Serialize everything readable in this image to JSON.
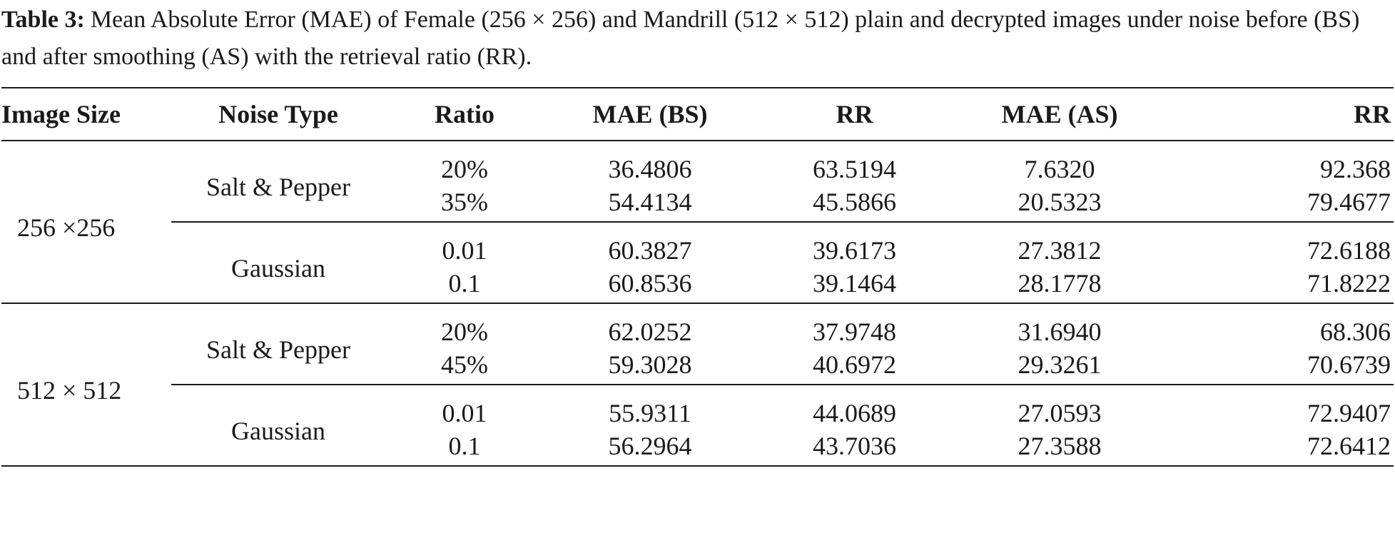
{
  "caption": {
    "label": "Table 3:",
    "text": "Mean Absolute Error (MAE) of Female (256 × 256) and Mandrill (512 × 512) plain and decrypted images under noise before (BS) and after smoothing (AS) with the retrieval ratio (RR)."
  },
  "table": {
    "headers": [
      "Image Size",
      "Noise Type",
      "Ratio",
      "MAE (BS)",
      "RR",
      "MAE (AS)",
      "RR"
    ],
    "groups": [
      {
        "size": "256 ×256",
        "noise": [
          {
            "type": "Salt & Pepper",
            "rows": [
              {
                "ratio": "20%",
                "mae_bs": "36.4806",
                "rr_bs": "63.5194",
                "mae_as": "7.6320",
                "rr_as": "92.368"
              },
              {
                "ratio": "35%",
                "mae_bs": "54.4134",
                "rr_bs": "45.5866",
                "mae_as": "20.5323",
                "rr_as": "79.4677"
              }
            ]
          },
          {
            "type": "Gaussian",
            "rows": [
              {
                "ratio": "0.01",
                "mae_bs": "60.3827",
                "rr_bs": "39.6173",
                "mae_as": "27.3812",
                "rr_as": "72.6188"
              },
              {
                "ratio": "0.1",
                "mae_bs": "60.8536",
                "rr_bs": "39.1464",
                "mae_as": "28.1778",
                "rr_as": "71.8222"
              }
            ]
          }
        ]
      },
      {
        "size": "512 × 512",
        "noise": [
          {
            "type": "Salt & Pepper",
            "rows": [
              {
                "ratio": "20%",
                "mae_bs": "62.0252",
                "rr_bs": "37.9748",
                "mae_as": "31.6940",
                "rr_as": "68.306"
              },
              {
                "ratio": "45%",
                "mae_bs": "59.3028",
                "rr_bs": "40.6972",
                "mae_as": "29.3261",
                "rr_as": "70.6739"
              }
            ]
          },
          {
            "type": "Gaussian",
            "rows": [
              {
                "ratio": "0.01",
                "mae_bs": "55.9311",
                "rr_bs": "44.0689",
                "mae_as": "27.0593",
                "rr_as": "72.9407"
              },
              {
                "ratio": "0.1",
                "mae_bs": "56.2964",
                "rr_bs": "43.7036",
                "mae_as": "27.3588",
                "rr_as": "72.6412"
              }
            ]
          }
        ]
      }
    ]
  }
}
